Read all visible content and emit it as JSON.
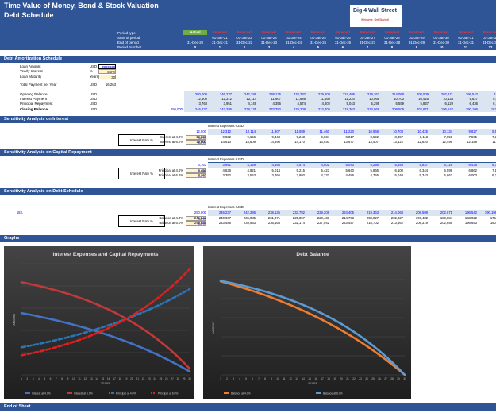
{
  "header": {
    "title": "Time Value of Money, Bond & Stock Valuation",
    "subtitle": "Debt Schedule",
    "logo": {
      "text": "Big 4 Wall Street",
      "tagline": "Welcome. Get Started!"
    },
    "row_labels": [
      "Period type",
      "Start of period",
      "End of period",
      "Period Number"
    ],
    "periods": [
      {
        "type": "Actual",
        "start": "",
        "end": "31-Dec-20",
        "num": "0"
      },
      {
        "type": "Forecast",
        "start": "01-Jan-21",
        "end": "31-Dec-21",
        "num": "1"
      },
      {
        "type": "Forecast",
        "start": "01-Jan-22",
        "end": "31-Dec-22",
        "num": "2"
      },
      {
        "type": "Forecast",
        "start": "01-Jan-23",
        "end": "31-Dec-23",
        "num": "3"
      },
      {
        "type": "Forecast",
        "start": "01-Jan-24",
        "end": "31-Dec-24",
        "num": "4"
      },
      {
        "type": "Forecast",
        "start": "01-Jan-25",
        "end": "31-Dec-25",
        "num": "5"
      },
      {
        "type": "Forecast",
        "start": "01-Jan-26",
        "end": "31-Dec-26",
        "num": "6"
      },
      {
        "type": "Forecast",
        "start": "01-Jan-27",
        "end": "31-Dec-27",
        "num": "7"
      },
      {
        "type": "Forecast",
        "start": "01-Jan-28",
        "end": "31-Dec-28",
        "num": "8"
      },
      {
        "type": "Forecast",
        "start": "01-Jan-29",
        "end": "31-Dec-29",
        "num": "9"
      },
      {
        "type": "Forecast",
        "start": "01-Jan-30",
        "end": "31-Dec-30",
        "num": "10"
      },
      {
        "type": "Forecast",
        "start": "01-Jan-31",
        "end": "31-Dec-31",
        "num": "11"
      },
      {
        "type": "Forecast",
        "start": "01-Jan-32",
        "end": "31-Dec-32",
        "num": "12"
      }
    ]
  },
  "amortization": {
    "section": "Debt Amortization Schedule",
    "inputs": [
      {
        "label": "Loan Amount",
        "unit": "USD",
        "value": "#######"
      },
      {
        "label": "Yearly Interest",
        "unit": "%",
        "value": "5.0%"
      },
      {
        "label": "Loan Maturity",
        "unit": "Years",
        "value": "30"
      },
      {
        "label": "Total Payment per Year",
        "unit": "USD",
        "value": "16,263"
      }
    ],
    "rows": [
      {
        "label": "Opening Balance",
        "unit": "USD",
        "values": [
          "",
          "250,000",
          "246,237",
          "242,286",
          "238,135",
          "233,782",
          "229,208",
          "224,405",
          "219,363",
          "214,068",
          "208,509",
          "202,671",
          "196,542",
          "19"
        ]
      },
      {
        "label": "Interest Payment",
        "unit": "USD",
        "values": [
          "",
          "12,500",
          "12,312",
          "12,114",
          "11,907",
          "11,689",
          "11,460",
          "11,220",
          "10,968",
          "10,703",
          "10,425",
          "10,134",
          "9,827",
          "9,5"
        ]
      },
      {
        "label": "Principal Repayment",
        "unit": "USD",
        "values": [
          "",
          "3,763",
          "3,951",
          "4,149",
          "4,356",
          "4,574",
          "4,802",
          "5,043",
          "5,295",
          "5,559",
          "5,837",
          "6,129",
          "6,436",
          "6,7"
        ]
      },
      {
        "label": "Closing Balance",
        "unit": "USD",
        "values": [
          "250,000",
          "246,237",
          "242,286",
          "238,135",
          "233,782",
          "229,208",
          "224,405",
          "219,363",
          "214,068",
          "208,509",
          "202,671",
          "196,542",
          "190,106",
          "183,"
        ]
      }
    ]
  },
  "sens_interest": {
    "section": "Sensitivity Analysis on Interest",
    "caption": "Interest Expenses (USD)",
    "side": "Interest Rate %",
    "top": [
      "12,500",
      "12,312",
      "12,114",
      "11,907",
      "11,689",
      "11,460",
      "11,220",
      "10,968",
      "10,703",
      "10,425",
      "10,134",
      "9,827",
      "9,5"
    ],
    "rows": [
      {
        "label": "Interest at 4.0%",
        "rate": "4.0%",
        "values": [
          "10,000",
          "9,832",
          "9,656",
          "9,443",
          "9,243",
          "9,034",
          "8,817",
          "8,592",
          "8,357",
          "8,113",
          "7,859",
          "7,595",
          "7,3"
        ]
      },
      {
        "label": "Interest at 6.0%",
        "rate": "6.0%",
        "values": [
          "15,000",
          "14,810",
          "14,609",
          "14,396",
          "14,170",
          "13,930",
          "13,677",
          "13,407",
          "13,122",
          "12,820",
          "12,499",
          "12,159",
          "11,"
        ]
      }
    ]
  },
  "sens_capital": {
    "section": "Sensitivity Analysis on Capital Repayment",
    "caption": "Interest Expenses (USD)",
    "side": "Interest Rate %",
    "top": [
      "3,763",
      "3,951",
      "4,149",
      "4,356",
      "4,574",
      "4,802",
      "5,043",
      "5,295",
      "5,559",
      "5,837",
      "6,129",
      "6,436",
      "6,7"
    ],
    "rows": [
      {
        "label": "Principal at 4.0%",
        "rate": "4.0%",
        "values": [
          "4,458",
          "4,636",
          "4,821",
          "5,014",
          "5,215",
          "5,423",
          "5,640",
          "5,866",
          "6,100",
          "6,344",
          "6,598",
          "6,862",
          "7,1"
        ]
      },
      {
        "label": "Principal at 6.0%",
        "rate": "6.0%",
        "values": [
          "3,162",
          "3,352",
          "3,553",
          "3,766",
          "3,992",
          "4,232",
          "4,486",
          "4,755",
          "5,040",
          "5,343",
          "5,663",
          "6,003",
          "6,3"
        ]
      }
    ]
  },
  "sens_debt": {
    "section": "Sensitivity Analysis on Debt Schedule",
    "caption": "Interest Expenses (USD)",
    "side": "Interest Rate %",
    "top": [
      "250,000",
      "246,237",
      "242,286",
      "238,135",
      "233,782",
      "229,208",
      "224,405",
      "219,363",
      "214,068",
      "208,509",
      "202,671",
      "196,542",
      "190,106",
      "183,"
    ],
    "rows": [
      {
        "label": "Balance at 4.0%",
        "rate": "4.0%",
        "values": [
          "245,542",
          "240,907",
          "236,085",
          "231,071",
          "225,857",
          "220,433",
          "214,793",
          "208,927",
          "202,827",
          "196,482",
          "189,884",
          "183,022",
          "175,"
        ]
      },
      {
        "label": "Balance at 6.0%",
        "rate": "6.0%",
        "values": [
          "246,838",
          "243,486",
          "239,933",
          "236,168",
          "232,174",
          "227,942",
          "223,457",
          "218,702",
          "213,662",
          "208,319",
          "202,656",
          "196,653",
          "190,"
        ]
      }
    ]
  },
  "graphs": {
    "section": "Graphs"
  },
  "footer": "End of Sheet",
  "chart_data": [
    {
      "type": "line",
      "title": "Interest Expenses and Capital Repayments",
      "xlabel": "YEARS",
      "ylabel": "AMOUNT",
      "x": [
        1,
        2,
        3,
        4,
        5,
        6,
        7,
        8,
        9,
        10,
        11,
        12,
        13,
        14,
        15,
        16,
        17,
        18,
        19,
        20,
        21,
        22,
        23,
        24,
        25,
        26,
        27,
        28,
        29,
        30
      ],
      "series": [
        {
          "name": "Interest at 4.0%",
          "color": "#4472c4",
          "style": "solid",
          "values": [
            10000,
            9832,
            9656,
            9443,
            9243,
            9034,
            8817,
            8592,
            8357,
            8113,
            7859,
            7595,
            7320,
            7034,
            6736,
            6427,
            6105,
            5770,
            5422,
            5060,
            4684,
            4292,
            3885,
            3461,
            3020,
            2562,
            2086,
            1590,
            1074,
            537
          ]
        },
        {
          "name": "Interest at 6.0%",
          "color": "#c0393b",
          "style": "solid",
          "values": [
            15000,
            14810,
            14609,
            14396,
            14170,
            13930,
            13677,
            13407,
            13122,
            12820,
            12499,
            12159,
            11799,
            11417,
            11012,
            10583,
            10128,
            9645,
            9134,
            8592,
            8017,
            7408,
            6763,
            6079,
            5354,
            4585,
            3770,
            2906,
            1990,
            1020
          ]
        },
        {
          "name": "Principal at 4.0%",
          "color": "#2e75b6",
          "style": "dashed",
          "values": [
            4458,
            4636,
            4821,
            5014,
            5215,
            5423,
            5640,
            5866,
            6100,
            6344,
            6598,
            6862,
            7136,
            7422,
            7719,
            8027,
            8349,
            8683,
            9030,
            9391,
            9767,
            10157,
            10564,
            10986,
            11426,
            11883,
            12358,
            12853,
            13367,
            13901
          ]
        },
        {
          "name": "Principal at 6.0%",
          "color": "#e02020",
          "style": "dashed",
          "values": [
            3162,
            3352,
            3553,
            3766,
            3992,
            4232,
            4486,
            4755,
            5040,
            5343,
            5663,
            6003,
            6363,
            6745,
            7150,
            7579,
            8033,
            8515,
            9026,
            9568,
            10142,
            10750,
            11395,
            12079,
            12804,
            13572,
            14387,
            15250,
            16165,
            17135
          ]
        }
      ],
      "ylim": [
        0,
        18000
      ]
    },
    {
      "type": "line",
      "title": "Debt Balance",
      "xlabel": "YEARS",
      "ylabel": "AMOUNT",
      "x": [
        1,
        2,
        3,
        4,
        5,
        6,
        7,
        8,
        9,
        10,
        11,
        12,
        13,
        14,
        15,
        16,
        17,
        18,
        19,
        20,
        21,
        22,
        23,
        24,
        25,
        26,
        27,
        28,
        29,
        30
      ],
      "series": [
        {
          "name": "Balance at 4.0%",
          "color": "#ed7d31",
          "style": "solid",
          "values": [
            245542,
            240907,
            236085,
            231071,
            225857,
            220433,
            214793,
            208927,
            202827,
            196482,
            189884,
            183022,
            175886,
            168464,
            160745,
            152718,
            144369,
            135686,
            126656,
            117265,
            107498,
            97341,
            86777,
            75791,
            64365,
            52482,
            40124,
            27271,
            13904,
            0
          ]
        },
        {
          "name": "Balance at 6.0%",
          "color": "#5b9bd5",
          "style": "solid",
          "values": [
            246838,
            243486,
            239933,
            236168,
            232174,
            227942,
            223457,
            218702,
            213662,
            208319,
            202656,
            196653,
            190290,
            183545,
            176396,
            168818,
            160785,
            152270,
            143244,
            133676,
            123534,
            112784,
            101389,
            89310,
            76506,
            62934,
            48548,
            33299,
            17134,
            0
          ]
        }
      ],
      "ylim": [
        0,
        250000
      ]
    }
  ]
}
